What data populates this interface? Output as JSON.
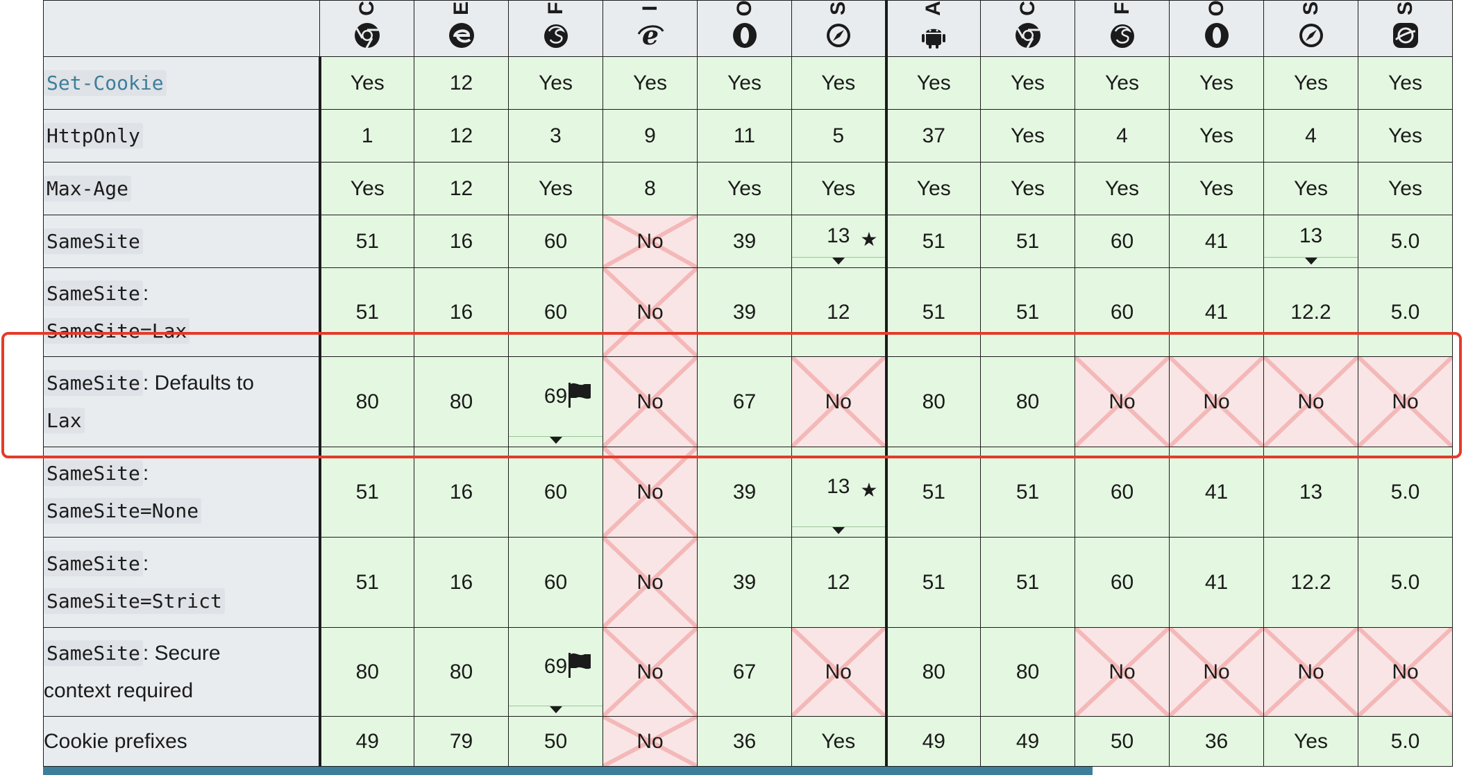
{
  "browsers": [
    {
      "name": "Chrome",
      "icon": "chrome-icon"
    },
    {
      "name": "Edge",
      "icon": "edge-icon"
    },
    {
      "name": "Firefox",
      "icon": "firefox-icon"
    },
    {
      "name": "Internet Explorer",
      "icon": "internet-explorer-icon"
    },
    {
      "name": "Opera",
      "icon": "opera-icon"
    },
    {
      "name": "Safari",
      "icon": "safari-icon"
    },
    {
      "name": "Android WebView",
      "icon": "android-icon"
    },
    {
      "name": "Chrome Android",
      "icon": "chrome-icon"
    },
    {
      "name": "Firefox for Android",
      "icon": "firefox-icon"
    },
    {
      "name": "Opera Android",
      "icon": "opera-icon"
    },
    {
      "name": "Safari on iOS",
      "icon": "safari-icon"
    },
    {
      "name": "Samsung Internet",
      "icon": "samsung-internet-icon"
    }
  ],
  "header_fragments": [
    "C",
    "E",
    "F",
    "I",
    "O",
    "S",
    "A",
    "C",
    "F",
    "O",
    "S",
    "S"
  ],
  "features": [
    {
      "code": "Set-Cookie",
      "link": true,
      "cells": [
        [
          "Yes",
          "y"
        ],
        [
          "12",
          "y"
        ],
        [
          "Yes",
          "y"
        ],
        [
          "Yes",
          "y"
        ],
        [
          "Yes",
          "y"
        ],
        [
          "Yes",
          "y"
        ],
        [
          "Yes",
          "y"
        ],
        [
          "Yes",
          "y"
        ],
        [
          "Yes",
          "y"
        ],
        [
          "Yes",
          "y"
        ],
        [
          "Yes",
          "y"
        ],
        [
          "Yes",
          "y"
        ]
      ]
    },
    {
      "code": "HttpOnly",
      "cells": [
        [
          "1",
          "y"
        ],
        [
          "12",
          "y"
        ],
        [
          "3",
          "y"
        ],
        [
          "9",
          "y"
        ],
        [
          "11",
          "y"
        ],
        [
          "5",
          "y"
        ],
        [
          "37",
          "y"
        ],
        [
          "Yes",
          "y"
        ],
        [
          "4",
          "y"
        ],
        [
          "Yes",
          "y"
        ],
        [
          "4",
          "y"
        ],
        [
          "Yes",
          "y"
        ]
      ]
    },
    {
      "code": "Max-Age",
      "cells": [
        [
          "Yes",
          "y"
        ],
        [
          "12",
          "y"
        ],
        [
          "Yes",
          "y"
        ],
        [
          "8",
          "y"
        ],
        [
          "Yes",
          "y"
        ],
        [
          "Yes",
          "y"
        ],
        [
          "Yes",
          "y"
        ],
        [
          "Yes",
          "y"
        ],
        [
          "Yes",
          "y"
        ],
        [
          "Yes",
          "y"
        ],
        [
          "Yes",
          "y"
        ],
        [
          "Yes",
          "y"
        ]
      ]
    },
    {
      "code": "SameSite",
      "cells": [
        [
          "51",
          "y"
        ],
        [
          "16",
          "y"
        ],
        [
          "60",
          "y"
        ],
        [
          "No",
          "n"
        ],
        [
          "39",
          "y"
        ],
        [
          "13",
          "y",
          "star"
        ],
        [
          "51",
          "y"
        ],
        [
          "51",
          "y"
        ],
        [
          "60",
          "y"
        ],
        [
          "41",
          "y"
        ],
        [
          "13",
          "y",
          "caret"
        ],
        [
          "5.0",
          "y"
        ]
      ]
    },
    {
      "code": "SameSite",
      "sep": ":",
      "code2": "SameSite=Lax",
      "cells": [
        [
          "51",
          "y"
        ],
        [
          "16",
          "y"
        ],
        [
          "60",
          "y"
        ],
        [
          "No",
          "n"
        ],
        [
          "39",
          "y"
        ],
        [
          "12",
          "y"
        ],
        [
          "51",
          "y"
        ],
        [
          "51",
          "y"
        ],
        [
          "60",
          "y"
        ],
        [
          "41",
          "y"
        ],
        [
          "12.2",
          "y"
        ],
        [
          "5.0",
          "y"
        ]
      ]
    },
    {
      "code": "SameSite",
      "sep": ": Defaults to",
      "code2": "Lax",
      "cells": [
        [
          "80",
          "y"
        ],
        [
          "80",
          "y"
        ],
        [
          "69",
          "y",
          "flag"
        ],
        [
          "No",
          "n"
        ],
        [
          "67",
          "y"
        ],
        [
          "No",
          "n"
        ],
        [
          "80",
          "y"
        ],
        [
          "80",
          "y"
        ],
        [
          "No",
          "n"
        ],
        [
          "No",
          "n"
        ],
        [
          "No",
          "n"
        ],
        [
          "No",
          "n"
        ]
      ]
    },
    {
      "code": "SameSite",
      "sep": ":",
      "code2": "SameSite=None",
      "cells": [
        [
          "51",
          "y"
        ],
        [
          "16",
          "y"
        ],
        [
          "60",
          "y"
        ],
        [
          "No",
          "n"
        ],
        [
          "39",
          "y"
        ],
        [
          "13",
          "y",
          "star"
        ],
        [
          "51",
          "y"
        ],
        [
          "51",
          "y"
        ],
        [
          "60",
          "y"
        ],
        [
          "41",
          "y"
        ],
        [
          "13",
          "y"
        ],
        [
          "5.0",
          "y"
        ]
      ]
    },
    {
      "code": "SameSite",
      "sep": ":",
      "code2": "SameSite=Strict",
      "cells": [
        [
          "51",
          "y"
        ],
        [
          "16",
          "y"
        ],
        [
          "60",
          "y"
        ],
        [
          "No",
          "n"
        ],
        [
          "39",
          "y"
        ],
        [
          "12",
          "y"
        ],
        [
          "51",
          "y"
        ],
        [
          "51",
          "y"
        ],
        [
          "60",
          "y"
        ],
        [
          "41",
          "y"
        ],
        [
          "12.2",
          "y"
        ],
        [
          "5.0",
          "y"
        ]
      ]
    },
    {
      "code": "SameSite",
      "sep": ": Secure",
      "text2": "context required",
      "cells": [
        [
          "80",
          "y"
        ],
        [
          "80",
          "y"
        ],
        [
          "69",
          "y",
          "flag"
        ],
        [
          "No",
          "n"
        ],
        [
          "67",
          "y"
        ],
        [
          "No",
          "n"
        ],
        [
          "80",
          "y"
        ],
        [
          "80",
          "y"
        ],
        [
          "No",
          "n"
        ],
        [
          "No",
          "n"
        ],
        [
          "No",
          "n"
        ],
        [
          "No",
          "n"
        ]
      ]
    },
    {
      "text": "Cookie prefixes",
      "cells": [
        [
          "49",
          "y"
        ],
        [
          "79",
          "y"
        ],
        [
          "50",
          "y"
        ],
        [
          "No",
          "n"
        ],
        [
          "36",
          "y"
        ],
        [
          "Yes",
          "y"
        ],
        [
          "49",
          "y"
        ],
        [
          "49",
          "y"
        ],
        [
          "50",
          "y"
        ],
        [
          "36",
          "y"
        ],
        [
          "Yes",
          "y"
        ],
        [
          "5.0",
          "y"
        ]
      ]
    }
  ],
  "colors": {
    "yes": "#e4f8e1",
    "no": "#f9e5e5",
    "highlight": "#e53a2a",
    "link": "#3d7e9a"
  }
}
